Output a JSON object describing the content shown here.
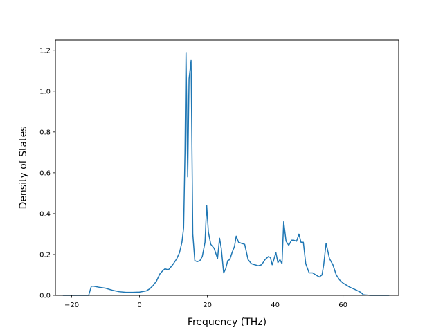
{
  "chart_data": {
    "type": "line",
    "title": "",
    "xlabel": "Frequency (THz)",
    "ylabel": "Density of States",
    "xlim": [
      -24.8,
      76.4
    ],
    "ylim": [
      0.0,
      1.25
    ],
    "xticks": [
      -20,
      0,
      20,
      40,
      60
    ],
    "xtick_labels": [
      "−20",
      "0",
      "20",
      "40",
      "60"
    ],
    "yticks": [
      0.0,
      0.2,
      0.4,
      0.6,
      0.8,
      1.0,
      1.2
    ],
    "ytick_labels": [
      "0.0",
      "0.2",
      "0.4",
      "0.6",
      "0.8",
      "1.0",
      "1.2"
    ],
    "grid": false,
    "line_color": "#1f77b4",
    "series": [
      {
        "x": [
          -22.5,
          -15,
          -14.2,
          -13.5,
          -12,
          -10,
          -8,
          -6,
          -4,
          -2,
          0,
          2,
          3,
          4,
          5,
          6,
          6.8,
          7.5,
          8.5,
          9.3,
          10,
          11,
          11.8,
          12.5,
          13,
          13.4,
          13.7,
          14.2,
          14.6,
          15.2,
          15.7,
          16.3,
          17,
          17.8,
          18.5,
          19.3,
          19.8,
          20.3,
          21,
          22,
          23,
          23.6,
          24.1,
          24.8,
          25.4,
          26,
          26.6,
          27.3,
          28,
          28.5,
          29.2,
          30,
          31,
          32,
          33,
          34,
          35,
          36,
          37,
          38,
          38.6,
          39.1,
          39.6,
          40.2,
          40.8,
          41.4,
          42,
          42.5,
          43.2,
          44,
          44.8,
          45.5,
          46.3,
          47,
          47.6,
          48.3,
          49,
          50,
          51,
          52,
          53,
          53.8,
          54.3,
          55,
          56,
          57,
          58,
          59,
          60,
          62,
          64,
          65.2,
          66,
          68,
          70,
          73.5
        ],
        "y": [
          0.0,
          0.0,
          0.045,
          0.045,
          0.04,
          0.035,
          0.025,
          0.018,
          0.015,
          0.015,
          0.016,
          0.022,
          0.032,
          0.048,
          0.07,
          0.105,
          0.12,
          0.13,
          0.125,
          0.14,
          0.155,
          0.18,
          0.21,
          0.26,
          0.33,
          0.7,
          1.19,
          0.58,
          1.06,
          1.15,
          0.3,
          0.17,
          0.165,
          0.17,
          0.19,
          0.26,
          0.44,
          0.31,
          0.25,
          0.23,
          0.18,
          0.28,
          0.23,
          0.11,
          0.13,
          0.17,
          0.175,
          0.21,
          0.24,
          0.29,
          0.26,
          0.255,
          0.25,
          0.175,
          0.155,
          0.15,
          0.145,
          0.15,
          0.175,
          0.19,
          0.185,
          0.15,
          0.175,
          0.21,
          0.16,
          0.175,
          0.155,
          0.36,
          0.265,
          0.245,
          0.27,
          0.27,
          0.265,
          0.3,
          0.26,
          0.26,
          0.155,
          0.11,
          0.11,
          0.1,
          0.09,
          0.1,
          0.15,
          0.255,
          0.18,
          0.15,
          0.1,
          0.075,
          0.06,
          0.04,
          0.025,
          0.015,
          0.003,
          0.0,
          0.0,
          0.0
        ]
      }
    ]
  }
}
